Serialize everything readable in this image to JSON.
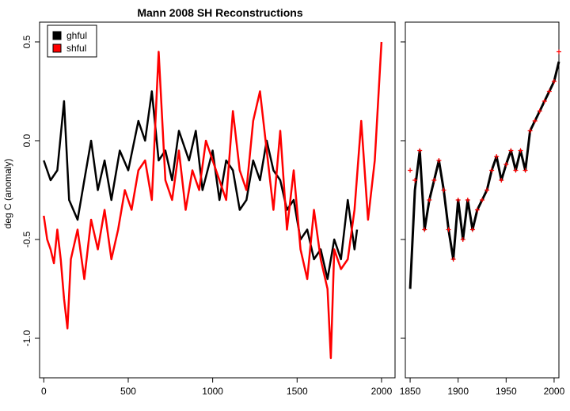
{
  "chart_data": [
    {
      "type": "line",
      "title": "Mann 2008 SH Reconstructions",
      "xlabel": "",
      "ylabel": "deg C (anomaly)",
      "xlim": [
        -25,
        2080
      ],
      "ylim": [
        -1.2,
        0.6
      ],
      "xticks": [
        0,
        500,
        1000,
        1500,
        2000
      ],
      "yticks": [
        -1.0,
        -0.5,
        0.0,
        0.5
      ],
      "ytick_labels": [
        "-1.0",
        "-0.5",
        "0.0",
        "0.5"
      ],
      "legend_position": "top-left",
      "series": [
        {
          "name": "ghful",
          "color": "#000000",
          "x": [
            0,
            40,
            80,
            120,
            150,
            200,
            240,
            280,
            320,
            360,
            400,
            450,
            500,
            560,
            600,
            640,
            680,
            720,
            760,
            800,
            860,
            900,
            940,
            1000,
            1040,
            1080,
            1120,
            1160,
            1200,
            1240,
            1280,
            1320,
            1360,
            1400,
            1440,
            1480,
            1520,
            1560,
            1600,
            1640,
            1680,
            1720,
            1760,
            1800,
            1840,
            1855
          ],
          "y": [
            -0.1,
            -0.2,
            -0.15,
            0.2,
            -0.3,
            -0.4,
            -0.2,
            0.0,
            -0.25,
            -0.1,
            -0.3,
            -0.05,
            -0.15,
            0.1,
            0.0,
            0.25,
            -0.1,
            -0.05,
            -0.2,
            0.05,
            -0.1,
            0.05,
            -0.25,
            -0.05,
            -0.3,
            -0.1,
            -0.15,
            -0.35,
            -0.3,
            -0.1,
            -0.2,
            0.0,
            -0.15,
            -0.2,
            -0.35,
            -0.3,
            -0.5,
            -0.45,
            -0.6,
            -0.55,
            -0.7,
            -0.5,
            -0.6,
            -0.3,
            -0.55,
            -0.45
          ]
        },
        {
          "name": "shful",
          "color": "#ff0000",
          "x": [
            0,
            20,
            40,
            60,
            80,
            100,
            120,
            140,
            160,
            200,
            240,
            280,
            320,
            360,
            400,
            440,
            480,
            520,
            560,
            600,
            640,
            680,
            720,
            760,
            800,
            840,
            880,
            920,
            960,
            1000,
            1040,
            1080,
            1120,
            1160,
            1200,
            1240,
            1280,
            1320,
            1360,
            1400,
            1440,
            1480,
            1520,
            1560,
            1600,
            1640,
            1680,
            1700,
            1720,
            1760,
            1800,
            1840,
            1880,
            1920,
            1960,
            2000
          ],
          "y": [
            -0.38,
            -0.5,
            -0.55,
            -0.62,
            -0.45,
            -0.6,
            -0.8,
            -0.95,
            -0.6,
            -0.45,
            -0.7,
            -0.4,
            -0.55,
            -0.35,
            -0.6,
            -0.45,
            -0.25,
            -0.35,
            -0.15,
            -0.1,
            -0.3,
            0.45,
            -0.2,
            -0.3,
            -0.05,
            -0.35,
            -0.15,
            -0.25,
            0.0,
            -0.1,
            -0.2,
            -0.3,
            0.15,
            -0.15,
            -0.25,
            0.1,
            0.25,
            -0.05,
            -0.35,
            0.05,
            -0.45,
            -0.15,
            -0.55,
            -0.7,
            -0.35,
            -0.6,
            -0.75,
            -1.1,
            -0.55,
            -0.65,
            -0.6,
            -0.35,
            0.1,
            -0.4,
            -0.1,
            0.5
          ]
        }
      ]
    },
    {
      "type": "line",
      "title": "",
      "xlim": [
        1845,
        2005
      ],
      "ylim": [
        -1.2,
        0.6
      ],
      "xticks": [
        1850,
        1900,
        1950,
        2000
      ],
      "yticks": [
        -1.0,
        -0.5,
        0.0,
        0.5
      ],
      "ytick_labels": [
        "",
        "",
        "",
        ""
      ],
      "series": [
        {
          "name": "ghful",
          "color": "#000000",
          "style": "line",
          "x": [
            1850,
            1855,
            1860,
            1865,
            1870,
            1875,
            1880,
            1885,
            1890,
            1895,
            1900,
            1905,
            1910,
            1915,
            1920,
            1925,
            1930,
            1935,
            1940,
            1945,
            1950,
            1955,
            1960,
            1965,
            1970,
            1975,
            1980,
            1985,
            1990,
            1995,
            2000,
            2005
          ],
          "y": [
            -0.75,
            -0.25,
            -0.05,
            -0.45,
            -0.3,
            -0.2,
            -0.1,
            -0.25,
            -0.45,
            -0.6,
            -0.3,
            -0.5,
            -0.3,
            -0.45,
            -0.35,
            -0.3,
            -0.25,
            -0.15,
            -0.08,
            -0.2,
            -0.12,
            -0.05,
            -0.15,
            -0.05,
            -0.15,
            0.05,
            0.1,
            0.15,
            0.2,
            0.25,
            0.3,
            0.4
          ]
        },
        {
          "name": "shful",
          "color": "#ff0000",
          "style": "points",
          "x": [
            1850,
            1855,
            1860,
            1865,
            1870,
            1875,
            1880,
            1885,
            1890,
            1895,
            1900,
            1905,
            1910,
            1915,
            1920,
            1925,
            1930,
            1935,
            1940,
            1945,
            1950,
            1955,
            1960,
            1965,
            1970,
            1975,
            1980,
            1985,
            1990,
            1995,
            2000,
            2005
          ],
          "y": [
            -0.15,
            -0.2,
            -0.05,
            -0.45,
            -0.3,
            -0.2,
            -0.1,
            -0.25,
            -0.45,
            -0.6,
            -0.3,
            -0.5,
            -0.3,
            -0.45,
            -0.35,
            -0.3,
            -0.25,
            -0.15,
            -0.08,
            -0.2,
            -0.12,
            -0.05,
            -0.15,
            -0.05,
            -0.15,
            0.05,
            0.1,
            0.15,
            0.2,
            0.25,
            0.3,
            0.45
          ]
        }
      ]
    }
  ]
}
